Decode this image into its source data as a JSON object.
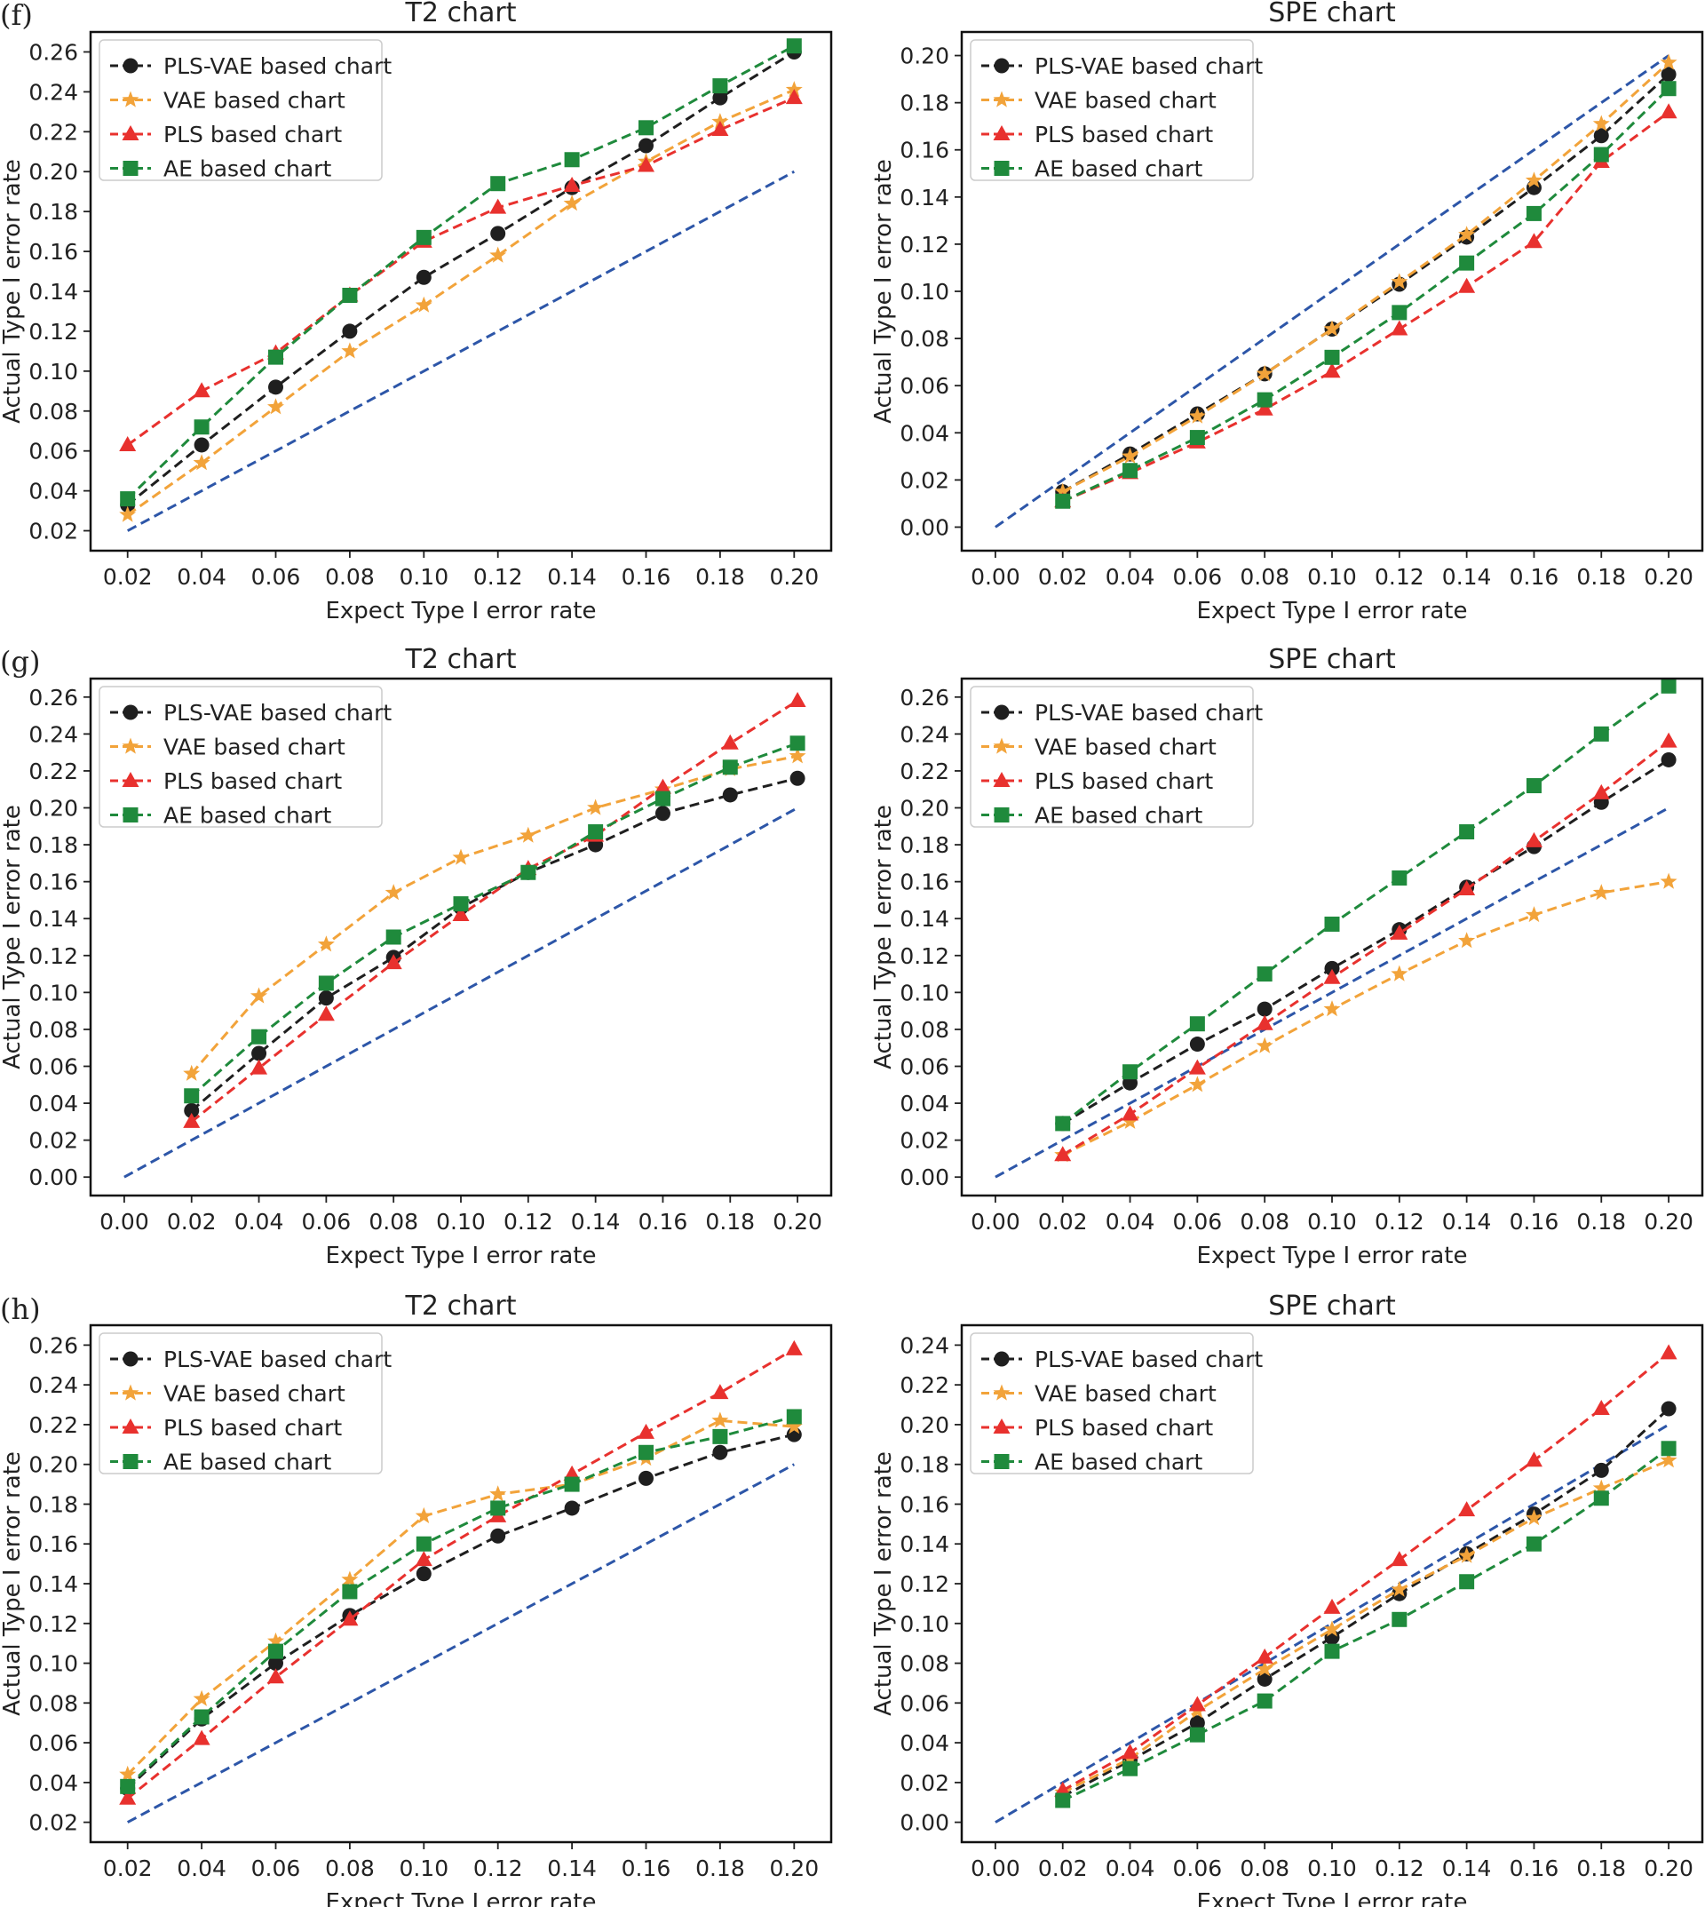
{
  "figure": {
    "rows": [
      {
        "label": "(f)"
      },
      {
        "label": "(g)"
      },
      {
        "label": "(h)"
      }
    ]
  },
  "colors": {
    "PLS-VAE based chart": "#1f1f1f",
    "VAE based chart": "#f2a33a",
    "PLS based chart": "#e8312e",
    "AE based chart": "#1f8a3c",
    "reference": "#2d56a8"
  },
  "chart_data": [
    {
      "panel": "f-T2",
      "type": "line",
      "title": "T2 chart",
      "xlabel": "Expect Type I error rate",
      "ylabel": "Actual Type I error rate",
      "xlim": [
        0.01,
        0.21
      ],
      "ylim": [
        0.01,
        0.27
      ],
      "xticks": [
        "0.02",
        "0.04",
        "0.06",
        "0.08",
        "0.10",
        "0.12",
        "0.14",
        "0.16",
        "0.18",
        "0.20"
      ],
      "yticks": [
        "0.02",
        "0.04",
        "0.06",
        "0.08",
        "0.10",
        "0.12",
        "0.14",
        "0.16",
        "0.18",
        "0.20",
        "0.22",
        "0.24",
        "0.26"
      ],
      "legend": "top-left",
      "reference": {
        "x": [
          0.02,
          0.2
        ],
        "y": [
          0.02,
          0.2
        ]
      },
      "x": [
        0.02,
        0.04,
        0.06,
        0.08,
        0.1,
        0.12,
        0.14,
        0.16,
        0.18,
        0.2
      ],
      "series": [
        {
          "name": "PLS-VAE based chart",
          "marker": "circle",
          "values": [
            0.033,
            0.063,
            0.092,
            0.12,
            0.147,
            0.169,
            0.192,
            0.213,
            0.237,
            0.26
          ]
        },
        {
          "name": "VAE based chart",
          "marker": "star",
          "values": [
            0.028,
            0.054,
            0.082,
            0.11,
            0.133,
            0.158,
            0.184,
            0.205,
            0.225,
            0.241
          ]
        },
        {
          "name": "PLS based chart",
          "marker": "triangle",
          "values": [
            0.063,
            0.09,
            0.109,
            0.138,
            0.165,
            0.182,
            0.193,
            0.203,
            0.221,
            0.237
          ]
        },
        {
          "name": "AE based chart",
          "marker": "square",
          "values": [
            0.036,
            0.072,
            0.107,
            0.138,
            0.167,
            0.194,
            0.206,
            0.222,
            0.243,
            0.263
          ]
        }
      ]
    },
    {
      "panel": "f-SPE",
      "type": "line",
      "title": "SPE chart",
      "xlabel": "Expect Type I error rate",
      "ylabel": "Actual Type I error rate",
      "xlim": [
        -0.01,
        0.21
      ],
      "ylim": [
        -0.01,
        0.21
      ],
      "xticks": [
        "0.00",
        "0.02",
        "0.04",
        "0.06",
        "0.08",
        "0.10",
        "0.12",
        "0.14",
        "0.16",
        "0.18",
        "0.20"
      ],
      "yticks": [
        "0.00",
        "0.02",
        "0.04",
        "0.06",
        "0.08",
        "0.10",
        "0.12",
        "0.14",
        "0.16",
        "0.18",
        "0.20"
      ],
      "legend": "top-left",
      "reference": {
        "x": [
          0.0,
          0.2
        ],
        "y": [
          0.0,
          0.2
        ]
      },
      "x": [
        0.02,
        0.04,
        0.06,
        0.08,
        0.1,
        0.12,
        0.14,
        0.16,
        0.18,
        0.2
      ],
      "series": [
        {
          "name": "PLS-VAE based chart",
          "marker": "circle",
          "values": [
            0.015,
            0.031,
            0.048,
            0.065,
            0.084,
            0.103,
            0.123,
            0.144,
            0.166,
            0.192
          ]
        },
        {
          "name": "VAE based chart",
          "marker": "star",
          "values": [
            0.015,
            0.03,
            0.047,
            0.065,
            0.084,
            0.104,
            0.124,
            0.147,
            0.171,
            0.197
          ]
        },
        {
          "name": "PLS based chart",
          "marker": "triangle",
          "values": [
            0.011,
            0.023,
            0.036,
            0.05,
            0.066,
            0.084,
            0.102,
            0.121,
            0.155,
            0.176
          ]
        },
        {
          "name": "AE based chart",
          "marker": "square",
          "values": [
            0.011,
            0.024,
            0.038,
            0.054,
            0.072,
            0.091,
            0.112,
            0.133,
            0.158,
            0.186
          ]
        }
      ]
    },
    {
      "panel": "g-T2",
      "type": "line",
      "title": "T2 chart",
      "xlabel": "Expect Type I error rate",
      "ylabel": "Actual Type I error rate",
      "xlim": [
        -0.01,
        0.21
      ],
      "ylim": [
        -0.01,
        0.27
      ],
      "xticks": [
        "0.00",
        "0.02",
        "0.04",
        "0.06",
        "0.08",
        "0.10",
        "0.12",
        "0.14",
        "0.16",
        "0.18",
        "0.20"
      ],
      "yticks": [
        "0.00",
        "0.02",
        "0.04",
        "0.06",
        "0.08",
        "0.10",
        "0.12",
        "0.14",
        "0.16",
        "0.18",
        "0.20",
        "0.22",
        "0.24",
        "0.26"
      ],
      "legend": "top-left",
      "reference": {
        "x": [
          0.0,
          0.2
        ],
        "y": [
          0.0,
          0.2
        ]
      },
      "x": [
        0.02,
        0.04,
        0.06,
        0.08,
        0.1,
        0.12,
        0.14,
        0.16,
        0.18,
        0.2
      ],
      "series": [
        {
          "name": "PLS-VAE based chart",
          "marker": "circle",
          "values": [
            0.036,
            0.067,
            0.097,
            0.119,
            0.146,
            0.165,
            0.18,
            0.197,
            0.207,
            0.216
          ]
        },
        {
          "name": "VAE based chart",
          "marker": "star",
          "values": [
            0.056,
            0.098,
            0.126,
            0.154,
            0.173,
            0.185,
            0.2,
            0.21,
            0.221,
            0.228
          ]
        },
        {
          "name": "PLS based chart",
          "marker": "triangle",
          "values": [
            0.03,
            0.059,
            0.088,
            0.116,
            0.142,
            0.167,
            0.185,
            0.211,
            0.235,
            0.258
          ]
        },
        {
          "name": "AE based chart",
          "marker": "square",
          "values": [
            0.044,
            0.076,
            0.105,
            0.13,
            0.148,
            0.165,
            0.187,
            0.205,
            0.222,
            0.235
          ]
        }
      ]
    },
    {
      "panel": "g-SPE",
      "type": "line",
      "title": "SPE chart",
      "xlabel": "Expect Type I error rate",
      "ylabel": "Actual Type I error rate",
      "xlim": [
        -0.01,
        0.21
      ],
      "ylim": [
        -0.01,
        0.27
      ],
      "xticks": [
        "0.00",
        "0.02",
        "0.04",
        "0.06",
        "0.08",
        "0.10",
        "0.12",
        "0.14",
        "0.16",
        "0.18",
        "0.20"
      ],
      "yticks": [
        "0.00",
        "0.02",
        "0.04",
        "0.06",
        "0.08",
        "0.10",
        "0.12",
        "0.14",
        "0.16",
        "0.18",
        "0.20",
        "0.22",
        "0.24",
        "0.26"
      ],
      "legend": "top-left",
      "reference": {
        "x": [
          0.0,
          0.2
        ],
        "y": [
          0.0,
          0.2
        ]
      },
      "x": [
        0.02,
        0.04,
        0.06,
        0.08,
        0.1,
        0.12,
        0.14,
        0.16,
        0.18,
        0.2
      ],
      "series": [
        {
          "name": "PLS-VAE based chart",
          "marker": "circle",
          "values": [
            0.029,
            0.051,
            0.072,
            0.091,
            0.113,
            0.134,
            0.157,
            0.179,
            0.203,
            0.226
          ]
        },
        {
          "name": "VAE based chart",
          "marker": "star",
          "values": [
            0.012,
            0.03,
            0.05,
            0.071,
            0.091,
            0.11,
            0.128,
            0.142,
            0.154,
            0.16
          ]
        },
        {
          "name": "PLS based chart",
          "marker": "triangle",
          "values": [
            0.012,
            0.034,
            0.059,
            0.083,
            0.108,
            0.132,
            0.156,
            0.182,
            0.208,
            0.236
          ]
        },
        {
          "name": "AE based chart",
          "marker": "square",
          "values": [
            0.029,
            0.057,
            0.083,
            0.11,
            0.137,
            0.162,
            0.187,
            0.212,
            0.24,
            0.266
          ]
        }
      ]
    },
    {
      "panel": "h-T2",
      "type": "line",
      "title": "T2 chart",
      "xlabel": "Expect Type I error rate",
      "ylabel": "Actual Type I error rate",
      "xlim": [
        0.01,
        0.21
      ],
      "ylim": [
        0.01,
        0.27
      ],
      "xticks": [
        "0.02",
        "0.04",
        "0.06",
        "0.08",
        "0.10",
        "0.12",
        "0.14",
        "0.16",
        "0.18",
        "0.20"
      ],
      "yticks": [
        "0.02",
        "0.04",
        "0.06",
        "0.08",
        "0.10",
        "0.12",
        "0.14",
        "0.16",
        "0.18",
        "0.20",
        "0.22",
        "0.24",
        "0.26"
      ],
      "legend": "top-left",
      "reference": {
        "x": [
          0.02,
          0.2
        ],
        "y": [
          0.02,
          0.2
        ]
      },
      "x": [
        0.02,
        0.04,
        0.06,
        0.08,
        0.1,
        0.12,
        0.14,
        0.16,
        0.18,
        0.2
      ],
      "series": [
        {
          "name": "PLS-VAE based chart",
          "marker": "circle",
          "values": [
            0.037,
            0.072,
            0.1,
            0.124,
            0.145,
            0.164,
            0.178,
            0.193,
            0.206,
            0.215
          ]
        },
        {
          "name": "VAE based chart",
          "marker": "star",
          "values": [
            0.044,
            0.082,
            0.111,
            0.142,
            0.174,
            0.185,
            0.19,
            0.203,
            0.222,
            0.219
          ]
        },
        {
          "name": "PLS based chart",
          "marker": "triangle",
          "values": [
            0.032,
            0.062,
            0.093,
            0.122,
            0.152,
            0.174,
            0.195,
            0.216,
            0.236,
            0.258
          ]
        },
        {
          "name": "AE based chart",
          "marker": "square",
          "values": [
            0.038,
            0.073,
            0.106,
            0.136,
            0.16,
            0.178,
            0.19,
            0.206,
            0.214,
            0.224
          ]
        }
      ]
    },
    {
      "panel": "h-SPE",
      "type": "line",
      "title": "SPE chart",
      "xlabel": "Expect Type I error rate",
      "ylabel": "Actual Type I error rate",
      "xlim": [
        -0.01,
        0.21
      ],
      "ylim": [
        -0.01,
        0.25
      ],
      "xticks": [
        "0.00",
        "0.02",
        "0.04",
        "0.06",
        "0.08",
        "0.10",
        "0.12",
        "0.14",
        "0.16",
        "0.18",
        "0.20"
      ],
      "yticks": [
        "0.00",
        "0.02",
        "0.04",
        "0.06",
        "0.08",
        "0.10",
        "0.12",
        "0.14",
        "0.16",
        "0.18",
        "0.20",
        "0.22",
        "0.24"
      ],
      "legend": "top-left",
      "reference": {
        "x": [
          0.0,
          0.2
        ],
        "y": [
          0.0,
          0.2
        ]
      },
      "x": [
        0.02,
        0.04,
        0.06,
        0.08,
        0.1,
        0.12,
        0.14,
        0.16,
        0.18,
        0.2
      ],
      "series": [
        {
          "name": "PLS-VAE based chart",
          "marker": "circle",
          "values": [
            0.013,
            0.031,
            0.05,
            0.072,
            0.093,
            0.115,
            0.135,
            0.155,
            0.177,
            0.208
          ]
        },
        {
          "name": "VAE based chart",
          "marker": "star",
          "values": [
            0.015,
            0.032,
            0.056,
            0.077,
            0.097,
            0.117,
            0.134,
            0.153,
            0.168,
            0.182
          ]
        },
        {
          "name": "PLS based chart",
          "marker": "triangle",
          "values": [
            0.016,
            0.035,
            0.059,
            0.083,
            0.108,
            0.132,
            0.157,
            0.182,
            0.208,
            0.236
          ]
        },
        {
          "name": "AE based chart",
          "marker": "square",
          "values": [
            0.011,
            0.027,
            0.044,
            0.061,
            0.086,
            0.102,
            0.121,
            0.14,
            0.163,
            0.188
          ]
        }
      ]
    }
  ]
}
